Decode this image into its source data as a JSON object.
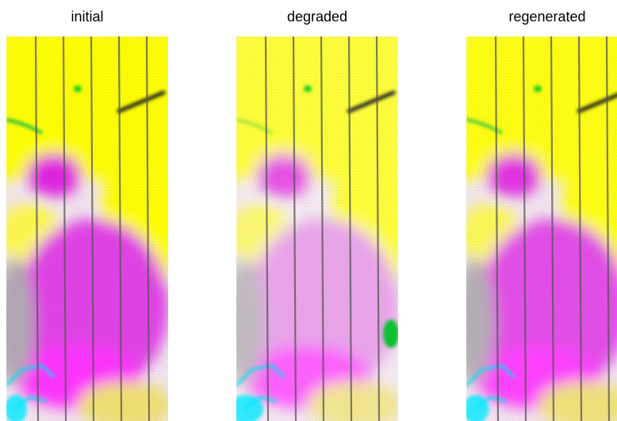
{
  "panels": [
    {
      "title": "initial"
    },
    {
      "title": "degraded"
    },
    {
      "title": "regenerated"
    }
  ]
}
